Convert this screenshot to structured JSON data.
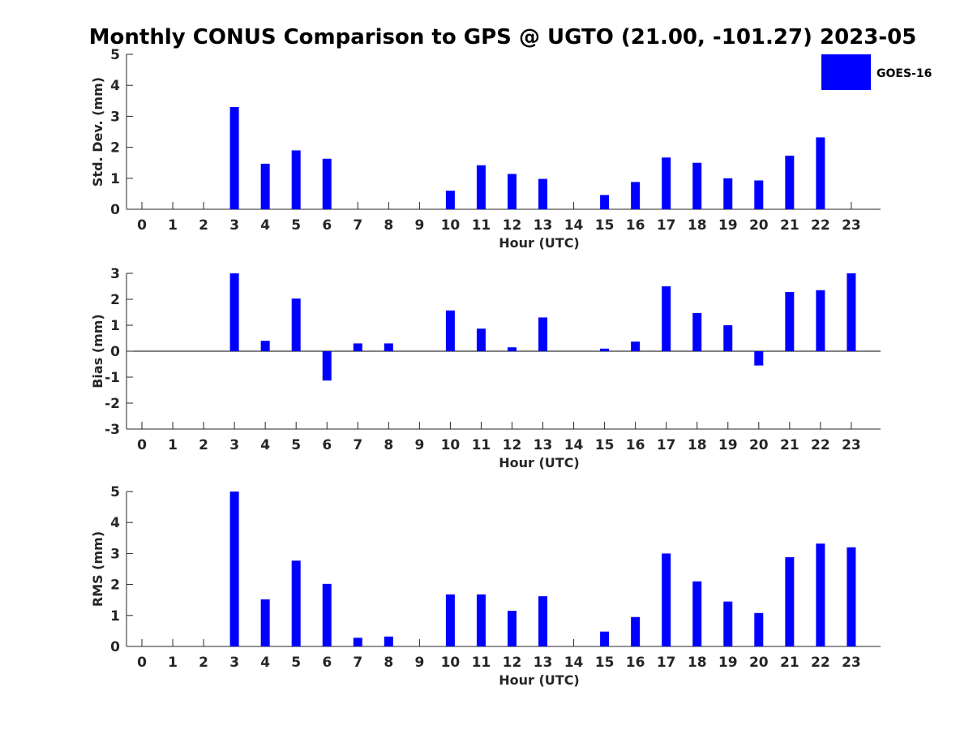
{
  "chart_data": {
    "title": "Monthly CONUS Comparison to GPS @ UGTO (21.00, -101.27) 2023-05",
    "series_name": "GOES-16",
    "bar_color": "#0000ff",
    "panels": [
      {
        "type": "bar",
        "ylabel": "Std. Dev. (mm)",
        "xlabel": "Hour (UTC)",
        "ylim": [
          0,
          5
        ],
        "yticks": [
          0,
          1,
          2,
          3,
          4,
          5
        ],
        "categories": [
          0,
          1,
          2,
          3,
          4,
          5,
          6,
          7,
          8,
          9,
          10,
          11,
          12,
          13,
          14,
          15,
          16,
          17,
          18,
          19,
          20,
          21,
          22,
          23
        ],
        "values": [
          null,
          null,
          null,
          3.3,
          1.47,
          1.9,
          1.63,
          null,
          null,
          null,
          0.6,
          1.42,
          1.14,
          0.98,
          null,
          0.46,
          0.88,
          1.67,
          1.5,
          1.0,
          0.93,
          1.73,
          2.32,
          null
        ],
        "legend": "top-right"
      },
      {
        "type": "bar",
        "ylabel": "Bias (mm)",
        "xlabel": "Hour (UTC)",
        "ylim": [
          -3,
          3
        ],
        "yticks": [
          -3,
          -2,
          -1,
          0,
          1,
          2,
          3
        ],
        "categories": [
          0,
          1,
          2,
          3,
          4,
          5,
          6,
          7,
          8,
          9,
          10,
          11,
          12,
          13,
          14,
          15,
          16,
          17,
          18,
          19,
          20,
          21,
          22,
          23
        ],
        "values": [
          null,
          null,
          null,
          3.0,
          0.4,
          2.03,
          -1.13,
          0.3,
          0.3,
          null,
          1.57,
          0.87,
          0.15,
          1.3,
          null,
          0.1,
          0.37,
          2.5,
          1.47,
          1.0,
          -0.55,
          2.28,
          2.35,
          3.0
        ]
      },
      {
        "type": "bar",
        "ylabel": "RMS (mm)",
        "xlabel": "Hour (UTC)",
        "ylim": [
          0,
          5
        ],
        "yticks": [
          0,
          1,
          2,
          3,
          4,
          5
        ],
        "categories": [
          0,
          1,
          2,
          3,
          4,
          5,
          6,
          7,
          8,
          9,
          10,
          11,
          12,
          13,
          14,
          15,
          16,
          17,
          18,
          19,
          20,
          21,
          22,
          23
        ],
        "values": [
          null,
          null,
          null,
          5.0,
          1.52,
          2.77,
          2.02,
          0.28,
          0.32,
          null,
          1.68,
          1.68,
          1.15,
          1.62,
          null,
          0.48,
          0.95,
          3.0,
          2.1,
          1.45,
          1.08,
          2.88,
          3.32,
          3.2
        ]
      }
    ]
  }
}
